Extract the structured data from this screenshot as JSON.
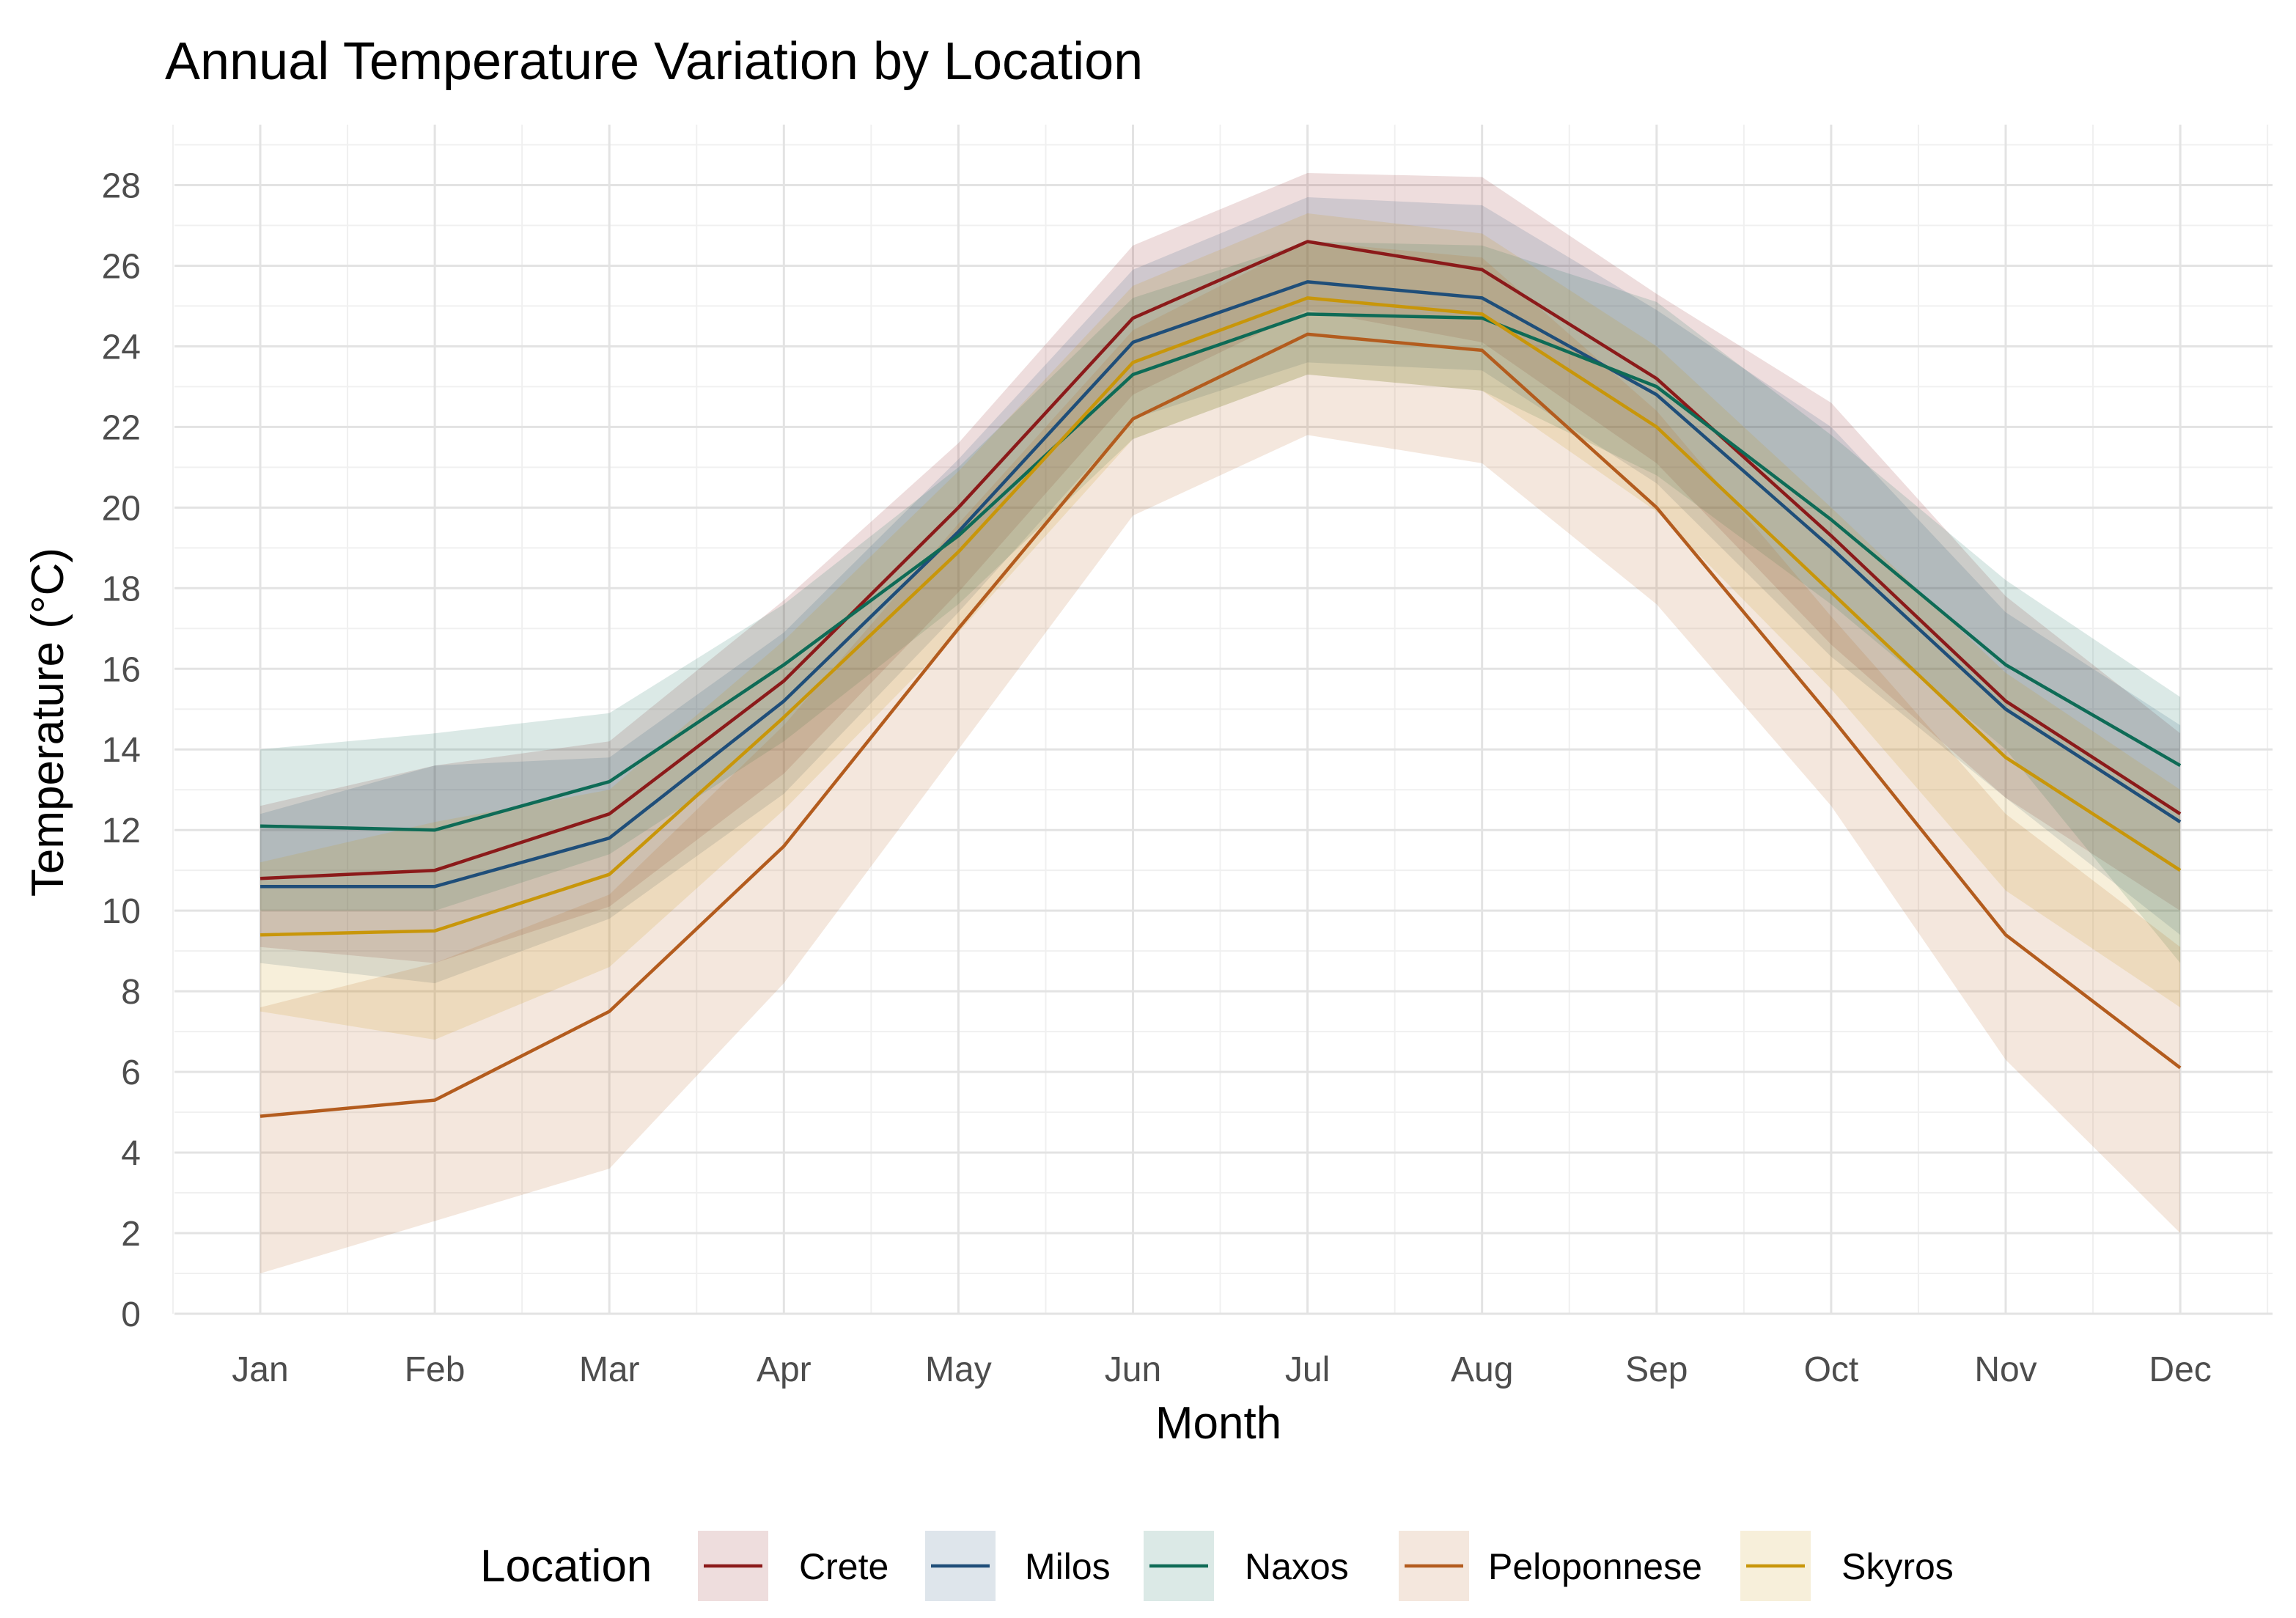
{
  "chart_data": {
    "type": "line",
    "title": "Annual Temperature Variation by Location",
    "xlabel": "Month",
    "ylabel": "Temperature (°C)",
    "categories": [
      "Jan",
      "Feb",
      "Mar",
      "Apr",
      "May",
      "Jun",
      "Jul",
      "Aug",
      "Sep",
      "Oct",
      "Nov",
      "Dec"
    ],
    "yticks": [
      "0",
      "2",
      "4",
      "6",
      "8",
      "10",
      "12",
      "14",
      "16",
      "18",
      "20",
      "22",
      "24",
      "26",
      "28"
    ],
    "ylim": [
      0,
      29.5
    ],
    "grid": true,
    "legend_position": "bottom",
    "legend_title": "Location",
    "series": [
      {
        "name": "Crete",
        "color": "#8b1a1a",
        "values": [
          10.8,
          11.0,
          12.4,
          15.7,
          20.0,
          24.7,
          26.6,
          25.9,
          23.2,
          19.3,
          15.2,
          12.4
        ],
        "lower": [
          9.1,
          8.7,
          10.1,
          13.4,
          17.9,
          22.8,
          24.9,
          24.1,
          21.1,
          16.6,
          12.8,
          10.0
        ],
        "upper": [
          12.6,
          13.6,
          14.2,
          17.7,
          21.6,
          26.5,
          28.3,
          28.2,
          25.3,
          22.6,
          17.8,
          14.4
        ]
      },
      {
        "name": "Milos",
        "color": "#1f4e79",
        "values": [
          10.6,
          10.6,
          11.8,
          15.2,
          19.4,
          24.1,
          25.6,
          25.2,
          22.8,
          19.0,
          15.0,
          12.2
        ],
        "lower": [
          8.7,
          8.2,
          9.8,
          12.9,
          17.4,
          22.2,
          23.6,
          23.4,
          20.6,
          16.3,
          12.8,
          9.4
        ],
        "upper": [
          12.4,
          13.6,
          13.8,
          16.9,
          21.2,
          25.9,
          27.7,
          27.5,
          24.9,
          22.0,
          17.4,
          14.6
        ]
      },
      {
        "name": "Naxos",
        "color": "#0e6b56",
        "values": [
          12.1,
          12.0,
          13.2,
          16.1,
          19.3,
          23.3,
          24.8,
          24.7,
          23.0,
          19.7,
          16.1,
          13.6
        ],
        "lower": [
          10.0,
          10.0,
          11.4,
          14.2,
          17.6,
          21.7,
          23.3,
          22.9,
          20.8,
          17.6,
          14.0,
          8.7
        ],
        "upper": [
          14.0,
          14.4,
          14.9,
          17.6,
          21.0,
          25.2,
          26.6,
          26.5,
          25.1,
          21.8,
          18.2,
          15.3
        ]
      },
      {
        "name": "Peloponnese",
        "color": "#b35c1e",
        "values": [
          4.9,
          5.3,
          7.5,
          11.6,
          17.0,
          22.2,
          24.3,
          23.9,
          20.0,
          14.8,
          9.4,
          6.1
        ],
        "lower": [
          1.0,
          2.3,
          3.6,
          8.2,
          14.0,
          19.8,
          21.8,
          21.1,
          17.6,
          12.6,
          6.3,
          2.0
        ],
        "upper": [
          7.6,
          8.7,
          10.4,
          14.6,
          19.6,
          24.4,
          26.6,
          26.2,
          22.4,
          17.3,
          12.4,
          9.1
        ]
      },
      {
        "name": "Skyros",
        "color": "#c8960a",
        "values": [
          9.4,
          9.5,
          10.9,
          14.8,
          18.9,
          23.6,
          25.2,
          24.8,
          22.0,
          17.9,
          13.8,
          11.0
        ],
        "lower": [
          7.5,
          6.8,
          8.6,
          12.5,
          16.9,
          21.7,
          23.3,
          22.9,
          19.9,
          15.5,
          10.5,
          7.6
        ],
        "upper": [
          11.2,
          12.2,
          13.0,
          16.7,
          20.9,
          25.5,
          27.3,
          26.8,
          24.0,
          20.0,
          15.9,
          13.0
        ]
      }
    ]
  }
}
